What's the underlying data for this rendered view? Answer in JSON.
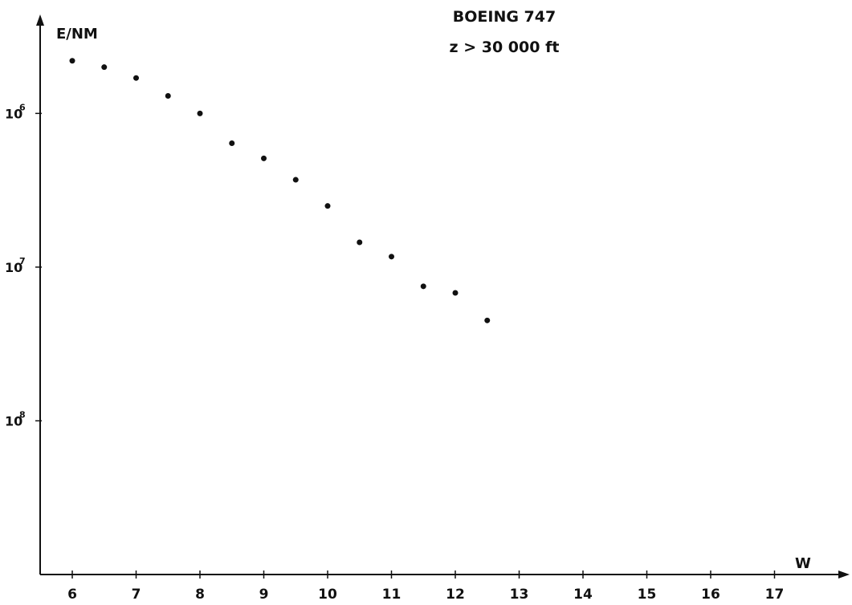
{
  "chart_data": {
    "type": "scatter",
    "title_line1": "BOEING 747",
    "title_line2": "z > 30 000 ft",
    "ylabel": "E/NM",
    "xlabel": "W",
    "x_ticks": [
      "6",
      "7",
      "8",
      "9",
      "10",
      "11",
      "12",
      "13",
      "14",
      "15",
      "16",
      "17"
    ],
    "x_tick_values": [
      6,
      7,
      8,
      9,
      10,
      11,
      12,
      13,
      14,
      15,
      16,
      17
    ],
    "xlim": [
      5.5,
      18.2
    ],
    "yscale": "log",
    "y_ticks": [
      {
        "base": "10",
        "exp": "6",
        "value": 1e-06
      },
      {
        "base": "10",
        "exp": "7",
        "value": 1e-07
      },
      {
        "base": "10",
        "exp": "8",
        "value": 1e-08
      }
    ],
    "ylim": [
      1e-09,
      4.3e-06
    ],
    "grid": false,
    "legend": "none",
    "points": [
      {
        "x": 6.0,
        "y": 2.2e-06
      },
      {
        "x": 6.5,
        "y": 2e-06
      },
      {
        "x": 7.0,
        "y": 1.7e-06
      },
      {
        "x": 7.5,
        "y": 1.3e-06
      },
      {
        "x": 8.0,
        "y": 1e-06
      },
      {
        "x": 8.5,
        "y": 6.4e-07
      },
      {
        "x": 9.0,
        "y": 5.1e-07
      },
      {
        "x": 9.5,
        "y": 3.7e-07
      },
      {
        "x": 10.0,
        "y": 2.5e-07
      },
      {
        "x": 10.5,
        "y": 1.45e-07
      },
      {
        "x": 11.0,
        "y": 1.17e-07
      },
      {
        "x": 11.5,
        "y": 7.5e-08
      },
      {
        "x": 12.0,
        "y": 6.8e-08
      },
      {
        "x": 12.5,
        "y": 4.5e-08
      }
    ],
    "marker_color": "#111111"
  }
}
